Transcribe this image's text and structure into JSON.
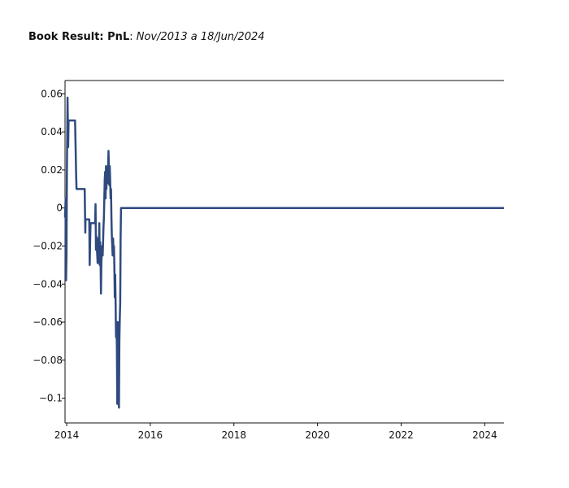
{
  "title": {
    "main": "Book Result: PnL",
    "separator": ": ",
    "subtitle": "Nov/2013 a 18/Jun/2024"
  },
  "chart_data": {
    "type": "line",
    "title": "Book Result: PnL: Nov/2013 a 18/Jun/2024",
    "xlabel": "",
    "ylabel": "",
    "xlim": [
      2013.96,
      2024.46
    ],
    "ylim": [
      -0.113,
      0.067
    ],
    "xticks": [
      {
        "value": 2014,
        "label": "2014"
      },
      {
        "value": 2016,
        "label": "2016"
      },
      {
        "value": 2018,
        "label": "2018"
      },
      {
        "value": 2020,
        "label": "2020"
      },
      {
        "value": 2022,
        "label": "2022"
      },
      {
        "value": 2024,
        "label": "2024"
      }
    ],
    "yticks": [
      {
        "value": 0.06,
        "label": "0.06"
      },
      {
        "value": 0.04,
        "label": "0.04"
      },
      {
        "value": 0.02,
        "label": "0.02"
      },
      {
        "value": 0,
        "label": "0"
      },
      {
        "value": -0.02,
        "label": "−0.02"
      },
      {
        "value": -0.04,
        "label": "−0.04"
      },
      {
        "value": -0.06,
        "label": "−0.06"
      },
      {
        "value": -0.08,
        "label": "−0.08"
      },
      {
        "value": -0.1,
        "label": "−0.1"
      }
    ],
    "grid": false,
    "color": "#2f4a7f",
    "series": [
      {
        "x": [
          2013.96,
          2013.975,
          2013.985,
          2013.995,
          2014.005,
          2014.02,
          2014.035,
          2014.045,
          2014.055,
          2014.07,
          2014.2,
          2014.215,
          2014.225,
          2014.235,
          2014.24,
          2014.25,
          2014.43,
          2014.44,
          2014.445,
          2014.45,
          2014.46,
          2014.48,
          2014.54,
          2014.55,
          2014.56,
          2014.57,
          2014.58,
          2014.68,
          2014.69,
          2014.7,
          2014.71,
          2014.72,
          2014.74,
          2014.75,
          2014.76,
          2014.77,
          2014.78,
          2014.79,
          2014.8,
          2014.81,
          2014.82,
          2014.83,
          2014.84,
          2014.85,
          2014.86,
          2014.87,
          2014.88,
          2014.89,
          2014.9,
          2014.91,
          2014.92,
          2014.93,
          2014.94,
          2014.95,
          2014.96,
          2014.97,
          2014.98,
          2014.99,
          2015.0,
          2015.01,
          2015.02,
          2015.03,
          2015.04,
          2015.05,
          2015.06,
          2015.07,
          2015.08,
          2015.09,
          2015.1,
          2015.11,
          2015.12,
          2015.13,
          2015.14,
          2015.15,
          2015.16,
          2015.17,
          2015.18,
          2015.19,
          2015.2,
          2015.21,
          2015.22,
          2015.23,
          2015.24,
          2015.25,
          2015.26,
          2015.27,
          2015.28,
          2015.29,
          2015.3,
          2015.31,
          2015.32,
          2015.33,
          2015.34,
          2015.35,
          2015.36,
          2015.37,
          2015.38,
          2015.39,
          2015.4,
          2015.41,
          2015.42,
          2015.43,
          2015.44,
          2015.45,
          2015.46,
          2015.47,
          2015.48,
          2015.49,
          2015.5,
          2015.51,
          2015.52,
          2015.53,
          2015.54,
          2015.55,
          2015.56,
          2015.57,
          2015.58,
          2015.59,
          2015.6,
          2015.61,
          2015.62,
          2015.63,
          2015.64,
          2015.65,
          2015.66,
          2015.67,
          2015.68,
          2015.69,
          2015.7,
          2015.71,
          2015.72,
          2015.73,
          2015.74,
          2015.75,
          2015.76,
          2015.77,
          2015.78,
          2015.79,
          2015.8,
          2016.0,
          2017.0,
          2018.0,
          2019.0,
          2020.0,
          2021.0,
          2022.0,
          2023.0,
          2024.0,
          2024.46
        ],
        "y": [
          -0.005,
          0.005,
          -0.038,
          -0.025,
          0.02,
          0.058,
          0.032,
          0.046,
          0.046,
          0.046,
          0.046,
          0.03,
          0.018,
          0.01,
          0.01,
          0.01,
          0.01,
          -0.005,
          -0.013,
          -0.006,
          -0.006,
          -0.006,
          -0.006,
          -0.03,
          -0.018,
          -0.008,
          -0.008,
          -0.008,
          0.002,
          -0.022,
          -0.015,
          -0.02,
          -0.029,
          -0.02,
          -0.016,
          -0.022,
          -0.008,
          -0.03,
          -0.018,
          -0.027,
          -0.045,
          -0.028,
          -0.024,
          -0.02,
          -0.025,
          -0.018,
          -0.01,
          -0.005,
          0.005,
          0.015,
          0.019,
          0.005,
          0.022,
          0.01,
          0.017,
          0.016,
          0.013,
          0.022,
          0.03,
          0.02,
          0.012,
          0.022,
          0.014,
          0.005,
          0.01,
          -0.005,
          -0.015,
          -0.02,
          -0.025,
          -0.016,
          -0.024,
          -0.02,
          -0.03,
          -0.047,
          -0.035,
          -0.05,
          -0.068,
          -0.062,
          -0.072,
          -0.103,
          -0.06,
          -0.068,
          -0.1,
          -0.105,
          -0.07,
          -0.058,
          -0.05,
          -0.015,
          0.0,
          0.0,
          0.0,
          0.0,
          0.0,
          0.0,
          0.0,
          0.0,
          0.0,
          0.0,
          0.0,
          0.0,
          0.0,
          0.0,
          0.0,
          0.0,
          0.0,
          0.0,
          0.0,
          0.0,
          0.0,
          0.0,
          0.0,
          0.0,
          0.0,
          0.0,
          0.0,
          0.0,
          0.0,
          0.0,
          0.0,
          0.0,
          0.0,
          0.0,
          0.0,
          0.0,
          0.0,
          0.0,
          0.0,
          0.0,
          0.0,
          0.0,
          0.0,
          0.0,
          0.0,
          0.0,
          0.0,
          0.0,
          0.0,
          0.0,
          0.0,
          0.0,
          0.0,
          0.0,
          0.0,
          0.0,
          0.0,
          0.0,
          0.0,
          0.0,
          0.0
        ]
      }
    ]
  }
}
